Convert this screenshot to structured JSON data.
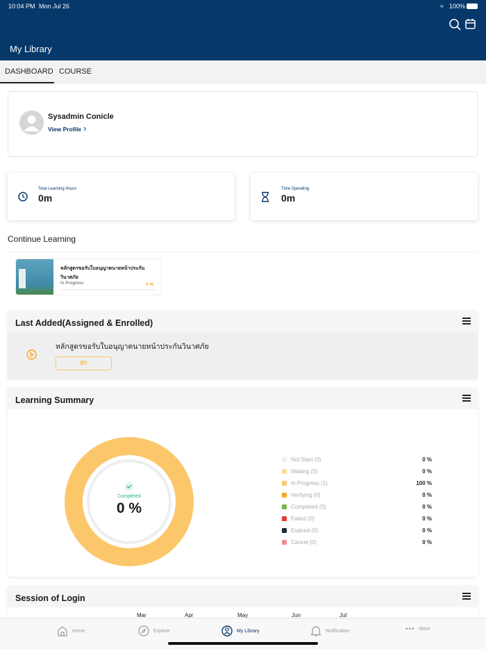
{
  "status_bar": {
    "time": "10:04 PM",
    "date": "Mon Jul 26",
    "battery": "100%"
  },
  "header": {
    "title": "My Library"
  },
  "tabs": [
    {
      "label": "DASHBOARD",
      "active": true
    },
    {
      "label": "COURSE",
      "active": false
    }
  ],
  "profile": {
    "name": "Sysadmin Conicle",
    "link": "View Profile"
  },
  "stats": [
    {
      "label": "Total Learning Hours",
      "value": "0m",
      "icon": "clock-icon"
    },
    {
      "label": "Time Spending",
      "value": "0m",
      "icon": "hourglass-icon"
    }
  ],
  "continue_learning": {
    "title": "Continue Learning",
    "course": {
      "title": "หลักสูตรขอรับใบอนุญาตนายหน้าประกันวินาศภัย",
      "status": "In Progress",
      "progress": "0 %",
      "progress_value": 0
    }
  },
  "last_added": {
    "title": "Last Added(Assigned & Enrolled)",
    "course": {
      "title": "หลักสูตรขอรับใบอนุญาตนายหน้าประกันวินาศภัย",
      "badge": "B0"
    }
  },
  "learning_summary": {
    "title": "Learning Summary",
    "center_label": "Completed",
    "center_value": "0 %"
  },
  "chart_data": {
    "type": "pie",
    "title": "Learning Summary",
    "categories": [
      "Not Start (0)",
      "Waiting (0)",
      "In Progress (1)",
      "Verifying (0)",
      "Completed (0)",
      "Failed (0)",
      "Expired (0)",
      "Cancel (0)"
    ],
    "values": [
      0,
      0,
      100,
      0,
      0,
      0,
      0,
      0
    ],
    "labels": [
      "0 %",
      "0 %",
      "100 %",
      "0 %",
      "0 %",
      "0 %",
      "0 %",
      "0 %"
    ],
    "colors": [
      "#eeeeee",
      "#fddc98",
      "#fcc76b",
      "#f9a825",
      "#7cb342",
      "#e53935",
      "#212b36",
      "#ef8f8f"
    ],
    "legend": "right"
  },
  "session": {
    "title": "Session of Login",
    "months": [
      "Mar",
      "Apr",
      "May",
      "Jun",
      "Jul"
    ]
  },
  "bottom_nav": [
    {
      "label": "Home"
    },
    {
      "label": "Explore"
    },
    {
      "label": "My Library",
      "active": true
    },
    {
      "label": "Notification"
    },
    {
      "label": "More"
    }
  ],
  "colors": {
    "brand": "#06386a",
    "accent": "#f9a825"
  }
}
